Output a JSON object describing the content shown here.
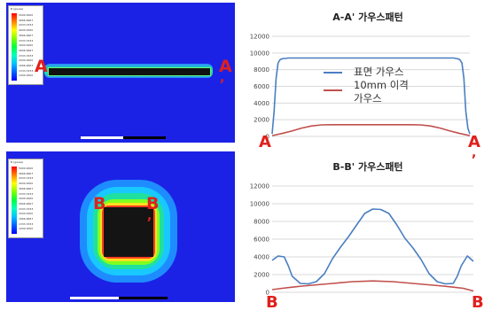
{
  "top_sim": {
    "legend_title": "B (gauss)",
    "legend_values": [
      "5000.0000",
      "4666.6667",
      "4333.3333",
      "4000.0000",
      "3666.6667",
      "3333.3333",
      "3000.0000",
      "2666.6667",
      "2333.3333",
      "2000.0000",
      "1666.6667",
      "1333.3333",
      "1000.0000",
      "666.6667",
      "333.3333",
      "0.0000"
    ],
    "labels": {
      "left": "A",
      "right": "A",
      "right_mark": ","
    }
  },
  "bottom_sim": {
    "legend_title": "B (gauss)",
    "legend_values": [
      "5000.0000",
      "4666.6667",
      "4333.3333",
      "4000.0000",
      "3666.6667",
      "3333.3333",
      "3000.0000",
      "2666.6667",
      "2333.3333",
      "2000.0000",
      "1666.6667",
      "1333.3333",
      "1000.0000",
      "666.6667",
      "333.3333",
      "0.0000"
    ],
    "labels": {
      "left": "B",
      "right": "B",
      "right_mark": ","
    }
  },
  "colors": {
    "surface": "#4a7fc0",
    "offset": "#c0504d",
    "grid": "#d9d9d9",
    "label": "#e0201c",
    "sim_bg": "#1b22e6"
  },
  "chart_data": [
    {
      "type": "line",
      "title": "A-A' 가우스패턴",
      "ylim": [
        0,
        12000
      ],
      "yticks": [
        0,
        2000,
        4000,
        6000,
        8000,
        10000,
        12000
      ],
      "xlim": [
        0,
        100
      ],
      "x_end_labels": {
        "left": "A",
        "right": "A",
        "right_mark": ","
      },
      "legend": [
        "표면 가우스",
        "10mm 이격",
        "가우스"
      ],
      "series": [
        {
          "name": "표면 가우스",
          "color": "#4a7fc0",
          "x": [
            0,
            1,
            2,
            3,
            4,
            5,
            6,
            7,
            8,
            10,
            20,
            30,
            40,
            50,
            60,
            70,
            80,
            90,
            92,
            93,
            94,
            95,
            96,
            97,
            98,
            99,
            100
          ],
          "y": [
            300,
            3000,
            7000,
            8800,
            9200,
            9300,
            9350,
            9350,
            9400,
            9400,
            9400,
            9400,
            9400,
            9400,
            9400,
            9400,
            9400,
            9400,
            9400,
            9350,
            9300,
            9200,
            8800,
            7000,
            3000,
            1000,
            300
          ]
        },
        {
          "name": "10mm 이격 가우스",
          "color": "#c0504d",
          "x": [
            0,
            5,
            10,
            15,
            20,
            25,
            30,
            40,
            50,
            60,
            70,
            75,
            80,
            85,
            90,
            95,
            100
          ],
          "y": [
            100,
            350,
            650,
            1000,
            1250,
            1380,
            1400,
            1400,
            1400,
            1400,
            1400,
            1380,
            1250,
            1000,
            650,
            350,
            100
          ]
        }
      ]
    },
    {
      "type": "line",
      "title": "B-B' 가우스패턴",
      "ylim": [
        0,
        12000
      ],
      "yticks": [
        0,
        2000,
        4000,
        6000,
        8000,
        10000,
        12000
      ],
      "xlim": [
        0,
        100
      ],
      "x_end_labels": {
        "left": "B",
        "right": "B"
      },
      "series": [
        {
          "name": "표면 가우스",
          "color": "#4a7fc0",
          "x": [
            0,
            3,
            6,
            8,
            10,
            14,
            18,
            22,
            26,
            30,
            34,
            38,
            42,
            46,
            50,
            54,
            58,
            62,
            66,
            70,
            74,
            78,
            82,
            86,
            90,
            92,
            94,
            97,
            100
          ],
          "y": [
            3600,
            4100,
            4000,
            3000,
            1800,
            1000,
            950,
            1200,
            2100,
            3800,
            5100,
            6300,
            7600,
            8900,
            9400,
            9350,
            8900,
            7600,
            6100,
            5000,
            3700,
            2100,
            1200,
            950,
            1000,
            1800,
            3000,
            4100,
            3500
          ]
        },
        {
          "name": "10mm 이격 가우스",
          "color": "#c0504d",
          "x": [
            0,
            5,
            10,
            15,
            20,
            25,
            30,
            40,
            50,
            60,
            70,
            75,
            80,
            85,
            90,
            95,
            100
          ],
          "y": [
            300,
            450,
            580,
            700,
            800,
            900,
            1000,
            1200,
            1280,
            1200,
            1000,
            900,
            800,
            700,
            580,
            450,
            150
          ]
        }
      ]
    }
  ]
}
